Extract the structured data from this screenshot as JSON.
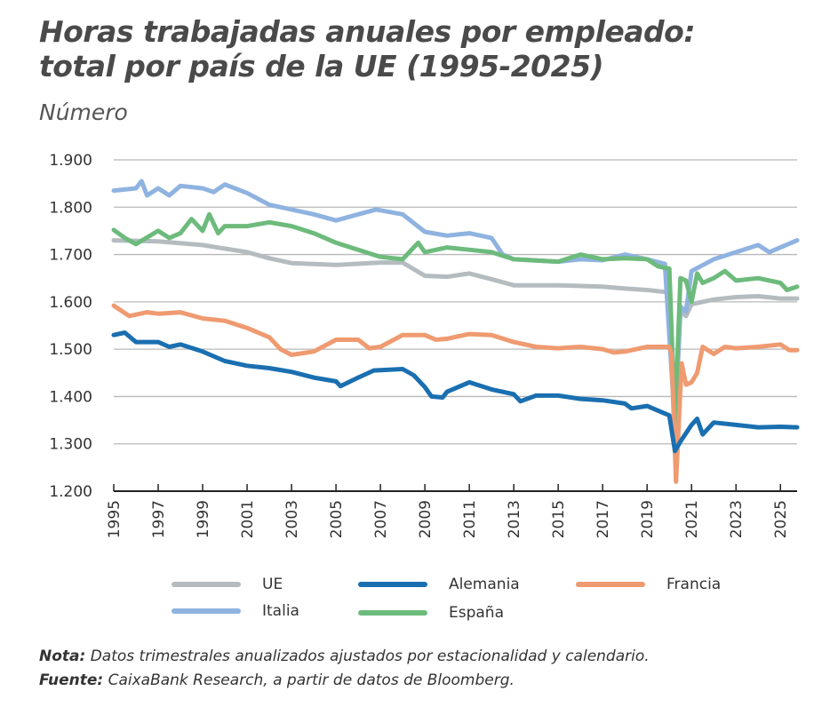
{
  "title_line1": "Horas trabajadas anuales por empleado:",
  "title_line2": "total por país de la UE (1995-2025)",
  "subtitle": "Número",
  "notes": {
    "nota_label": "Nota:",
    "nota_text": " Datos trimestrales anualizados ajustados por estacionalidad y calendario.",
    "fuente_label": "Fuente:",
    "fuente_text": " CaixaBank Research, a partir de datos de Bloomberg."
  },
  "chart_data": {
    "type": "line",
    "title": "Horas trabajadas anuales por empleado: total por país de la UE (1995-2025)",
    "ylabel": "Número",
    "xlim": [
      1995,
      2025.75
    ],
    "ylim": [
      1200,
      1900
    ],
    "x_ticks": [
      "1995",
      "1997",
      "1999",
      "2001",
      "2003",
      "2005",
      "2007",
      "2009",
      "2011",
      "2013",
      "2015",
      "2017",
      "2019",
      "2021",
      "2023",
      "2025"
    ],
    "y_ticks": [
      "1.200",
      "1.300",
      "1.400",
      "1.500",
      "1.600",
      "1.700",
      "1.800",
      "1.900"
    ],
    "grid": true,
    "legend_position": "bottom",
    "series": [
      {
        "name": "UE",
        "color": "#b4bcc0",
        "points": [
          [
            1995,
            1730
          ],
          [
            1997,
            1728
          ],
          [
            1999,
            1720
          ],
          [
            2001,
            1705
          ],
          [
            2002,
            1692
          ],
          [
            2003,
            1682
          ],
          [
            2005,
            1678
          ],
          [
            2007,
            1683
          ],
          [
            2008,
            1683
          ],
          [
            2009,
            1655
          ],
          [
            2010,
            1653
          ],
          [
            2011,
            1660
          ],
          [
            2012,
            1648
          ],
          [
            2013,
            1635
          ],
          [
            2015,
            1635
          ],
          [
            2017,
            1632
          ],
          [
            2018,
            1628
          ],
          [
            2019,
            1625
          ],
          [
            2020,
            1620
          ],
          [
            2020.25,
            1340
          ],
          [
            2020.5,
            1580
          ],
          [
            2020.75,
            1570
          ],
          [
            2021,
            1595
          ],
          [
            2022,
            1605
          ],
          [
            2023,
            1610
          ],
          [
            2024,
            1612
          ],
          [
            2025,
            1607
          ],
          [
            2025.75,
            1607
          ]
        ]
      },
      {
        "name": "Italia",
        "color": "#8fb3e0",
        "points": [
          [
            1995,
            1835
          ],
          [
            1996,
            1840
          ],
          [
            1996.25,
            1855
          ],
          [
            1996.5,
            1825
          ],
          [
            1997,
            1840
          ],
          [
            1997.5,
            1825
          ],
          [
            1998,
            1845
          ],
          [
            1999,
            1840
          ],
          [
            1999.5,
            1832
          ],
          [
            2000,
            1848
          ],
          [
            2001,
            1830
          ],
          [
            2002,
            1805
          ],
          [
            2003,
            1795
          ],
          [
            2004,
            1785
          ],
          [
            2005,
            1772
          ],
          [
            2006,
            1785
          ],
          [
            2006.8,
            1795
          ],
          [
            2008,
            1785
          ],
          [
            2009,
            1748
          ],
          [
            2010,
            1740
          ],
          [
            2011,
            1745
          ],
          [
            2012,
            1735
          ],
          [
            2012.5,
            1700
          ],
          [
            2013,
            1690
          ],
          [
            2015,
            1685
          ],
          [
            2016,
            1690
          ],
          [
            2017,
            1688
          ],
          [
            2018,
            1700
          ],
          [
            2019,
            1690
          ],
          [
            2019.8,
            1680
          ],
          [
            2020.25,
            1340
          ],
          [
            2020.5,
            1590
          ],
          [
            2020.75,
            1580
          ],
          [
            2021,
            1665
          ],
          [
            2022,
            1690
          ],
          [
            2023,
            1705
          ],
          [
            2024,
            1720
          ],
          [
            2024.5,
            1705
          ],
          [
            2025,
            1715
          ],
          [
            2025.75,
            1730
          ]
        ]
      },
      {
        "name": "España",
        "color": "#6dbb7c",
        "points": [
          [
            1995,
            1752
          ],
          [
            1995.5,
            1735
          ],
          [
            1996,
            1722
          ],
          [
            1997,
            1750
          ],
          [
            1997.5,
            1735
          ],
          [
            1998,
            1745
          ],
          [
            1998.5,
            1775
          ],
          [
            1999,
            1750
          ],
          [
            1999.3,
            1785
          ],
          [
            1999.7,
            1745
          ],
          [
            2000,
            1760
          ],
          [
            2001,
            1760
          ],
          [
            2002,
            1768
          ],
          [
            2003,
            1760
          ],
          [
            2004,
            1745
          ],
          [
            2005,
            1725
          ],
          [
            2006,
            1710
          ],
          [
            2007,
            1695
          ],
          [
            2008,
            1690
          ],
          [
            2008.7,
            1725
          ],
          [
            2009,
            1705
          ],
          [
            2010,
            1715
          ],
          [
            2011,
            1710
          ],
          [
            2012,
            1705
          ],
          [
            2013,
            1690
          ],
          [
            2015,
            1685
          ],
          [
            2016,
            1700
          ],
          [
            2017,
            1690
          ],
          [
            2018,
            1692
          ],
          [
            2019,
            1690
          ],
          [
            2019.5,
            1675
          ],
          [
            2020,
            1670
          ],
          [
            2020.25,
            1345
          ],
          [
            2020.5,
            1650
          ],
          [
            2020.75,
            1645
          ],
          [
            2021,
            1600
          ],
          [
            2021.25,
            1660
          ],
          [
            2021.5,
            1640
          ],
          [
            2022,
            1650
          ],
          [
            2022.5,
            1665
          ],
          [
            2023,
            1645
          ],
          [
            2024,
            1650
          ],
          [
            2025,
            1640
          ],
          [
            2025.3,
            1625
          ],
          [
            2025.75,
            1632
          ]
        ]
      },
      {
        "name": "Francia",
        "color": "#ef9a70",
        "points": [
          [
            1995,
            1592
          ],
          [
            1995.7,
            1570
          ],
          [
            1996.5,
            1578
          ],
          [
            1997,
            1575
          ],
          [
            1998,
            1578
          ],
          [
            1999,
            1565
          ],
          [
            2000,
            1560
          ],
          [
            2001,
            1545
          ],
          [
            2002,
            1525
          ],
          [
            2002.5,
            1500
          ],
          [
            2003,
            1488
          ],
          [
            2004,
            1495
          ],
          [
            2005,
            1520
          ],
          [
            2006,
            1520
          ],
          [
            2006.5,
            1502
          ],
          [
            2007,
            1505
          ],
          [
            2008,
            1530
          ],
          [
            2009,
            1530
          ],
          [
            2009.5,
            1520
          ],
          [
            2010,
            1522
          ],
          [
            2011,
            1532
          ],
          [
            2012,
            1530
          ],
          [
            2013,
            1515
          ],
          [
            2014,
            1505
          ],
          [
            2015,
            1502
          ],
          [
            2016,
            1505
          ],
          [
            2017,
            1500
          ],
          [
            2017.5,
            1493
          ],
          [
            2018,
            1495
          ],
          [
            2019,
            1505
          ],
          [
            2020,
            1505
          ],
          [
            2020.1,
            1490
          ],
          [
            2020.3,
            1220
          ],
          [
            2020.55,
            1470
          ],
          [
            2020.75,
            1425
          ],
          [
            2021,
            1430
          ],
          [
            2021.25,
            1450
          ],
          [
            2021.5,
            1505
          ],
          [
            2022,
            1490
          ],
          [
            2022.5,
            1505
          ],
          [
            2023,
            1502
          ],
          [
            2024,
            1505
          ],
          [
            2025,
            1510
          ],
          [
            2025.4,
            1498
          ],
          [
            2025.75,
            1498
          ]
        ]
      },
      {
        "name": "Alemania",
        "color": "#1a6fb0",
        "points": [
          [
            1995,
            1530
          ],
          [
            1995.5,
            1535
          ],
          [
            1996,
            1515
          ],
          [
            1997,
            1515
          ],
          [
            1997.5,
            1505
          ],
          [
            1998,
            1510
          ],
          [
            1999,
            1495
          ],
          [
            2000,
            1475
          ],
          [
            2001,
            1465
          ],
          [
            2002,
            1460
          ],
          [
            2003,
            1452
          ],
          [
            2004,
            1440
          ],
          [
            2005,
            1432
          ],
          [
            2005.2,
            1422
          ],
          [
            2006,
            1440
          ],
          [
            2006.7,
            1455
          ],
          [
            2008,
            1458
          ],
          [
            2008.5,
            1445
          ],
          [
            2009,
            1420
          ],
          [
            2009.3,
            1400
          ],
          [
            2009.8,
            1398
          ],
          [
            2010,
            1410
          ],
          [
            2011,
            1430
          ],
          [
            2012,
            1415
          ],
          [
            2013,
            1405
          ],
          [
            2013.3,
            1390
          ],
          [
            2014,
            1402
          ],
          [
            2015,
            1402
          ],
          [
            2016,
            1395
          ],
          [
            2017,
            1392
          ],
          [
            2018,
            1385
          ],
          [
            2018.3,
            1375
          ],
          [
            2019,
            1380
          ],
          [
            2019.5,
            1370
          ],
          [
            2020,
            1360
          ],
          [
            2020.25,
            1285
          ],
          [
            2020.5,
            1305
          ],
          [
            2021,
            1340
          ],
          [
            2021.25,
            1353
          ],
          [
            2021.5,
            1320
          ],
          [
            2022,
            1345
          ],
          [
            2023,
            1340
          ],
          [
            2024,
            1335
          ],
          [
            2025,
            1336
          ],
          [
            2025.75,
            1335
          ]
        ]
      }
    ],
    "legend": [
      "UE",
      "Alemania",
      "Francia",
      "Italia",
      "España"
    ]
  }
}
